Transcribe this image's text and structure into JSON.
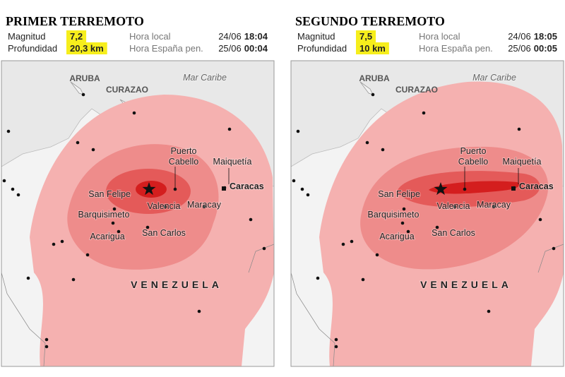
{
  "panels": [
    {
      "title": "PRIMER TERREMOTO",
      "rows": [
        {
          "label": "Magnitud",
          "value": "7,2",
          "time_label": "Hora local",
          "date": "24/06",
          "time": "18:04"
        },
        {
          "label": "Profundidad",
          "value": "20,3 km",
          "time_label": "Hora España pen.",
          "date": "25/06",
          "time": "00:04"
        }
      ]
    },
    {
      "title": "SEGUNDO TERREMOTO",
      "rows": [
        {
          "label": "Magnitud",
          "value": "7,5",
          "time_label": "Hora local",
          "date": "24/06",
          "time": "18:05"
        },
        {
          "label": "Profundidad",
          "value": "10 km",
          "time_label": "Hora España pen.",
          "date": "25/06",
          "time": "00:05"
        }
      ]
    }
  ],
  "map_labels": {
    "aruba": "ARUBA",
    "curazao": "CURAZAO",
    "sea": "Mar Caribe",
    "puerto_cabello": "Puerto Cabello",
    "maiquetia": "Maiquetía",
    "caracas": "Caracas",
    "san_felipe": "San Felipe",
    "valencia": "Valencia",
    "maracay": "Maracay",
    "barquisimeto": "Barquisimeto",
    "acarigua": "Acarigua",
    "san_carlos": "San Carlos",
    "country": "VENEZUELA"
  }
}
